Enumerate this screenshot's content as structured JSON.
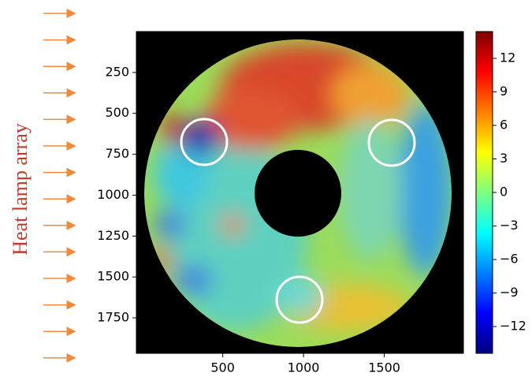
{
  "chart_data": {
    "type": "heatmap",
    "side_label": "Heat lamp array",
    "xlim": [
      -35,
      1990
    ],
    "xticks": [
      500,
      1000,
      1500
    ],
    "ylim": [
      0,
      1967
    ],
    "y_inverted": true,
    "yticks": [
      250,
      500,
      750,
      1000,
      1250,
      1500,
      1750
    ],
    "clim": [
      -14.4,
      14.4
    ],
    "colormap": "jet",
    "cticks": [
      {
        "value": -12,
        "label": "−12"
      },
      {
        "value": -9,
        "label": "−9"
      },
      {
        "value": -6,
        "label": "−6"
      },
      {
        "value": -3,
        "label": "−3"
      },
      0,
      3,
      6,
      9,
      12
    ]
  }
}
